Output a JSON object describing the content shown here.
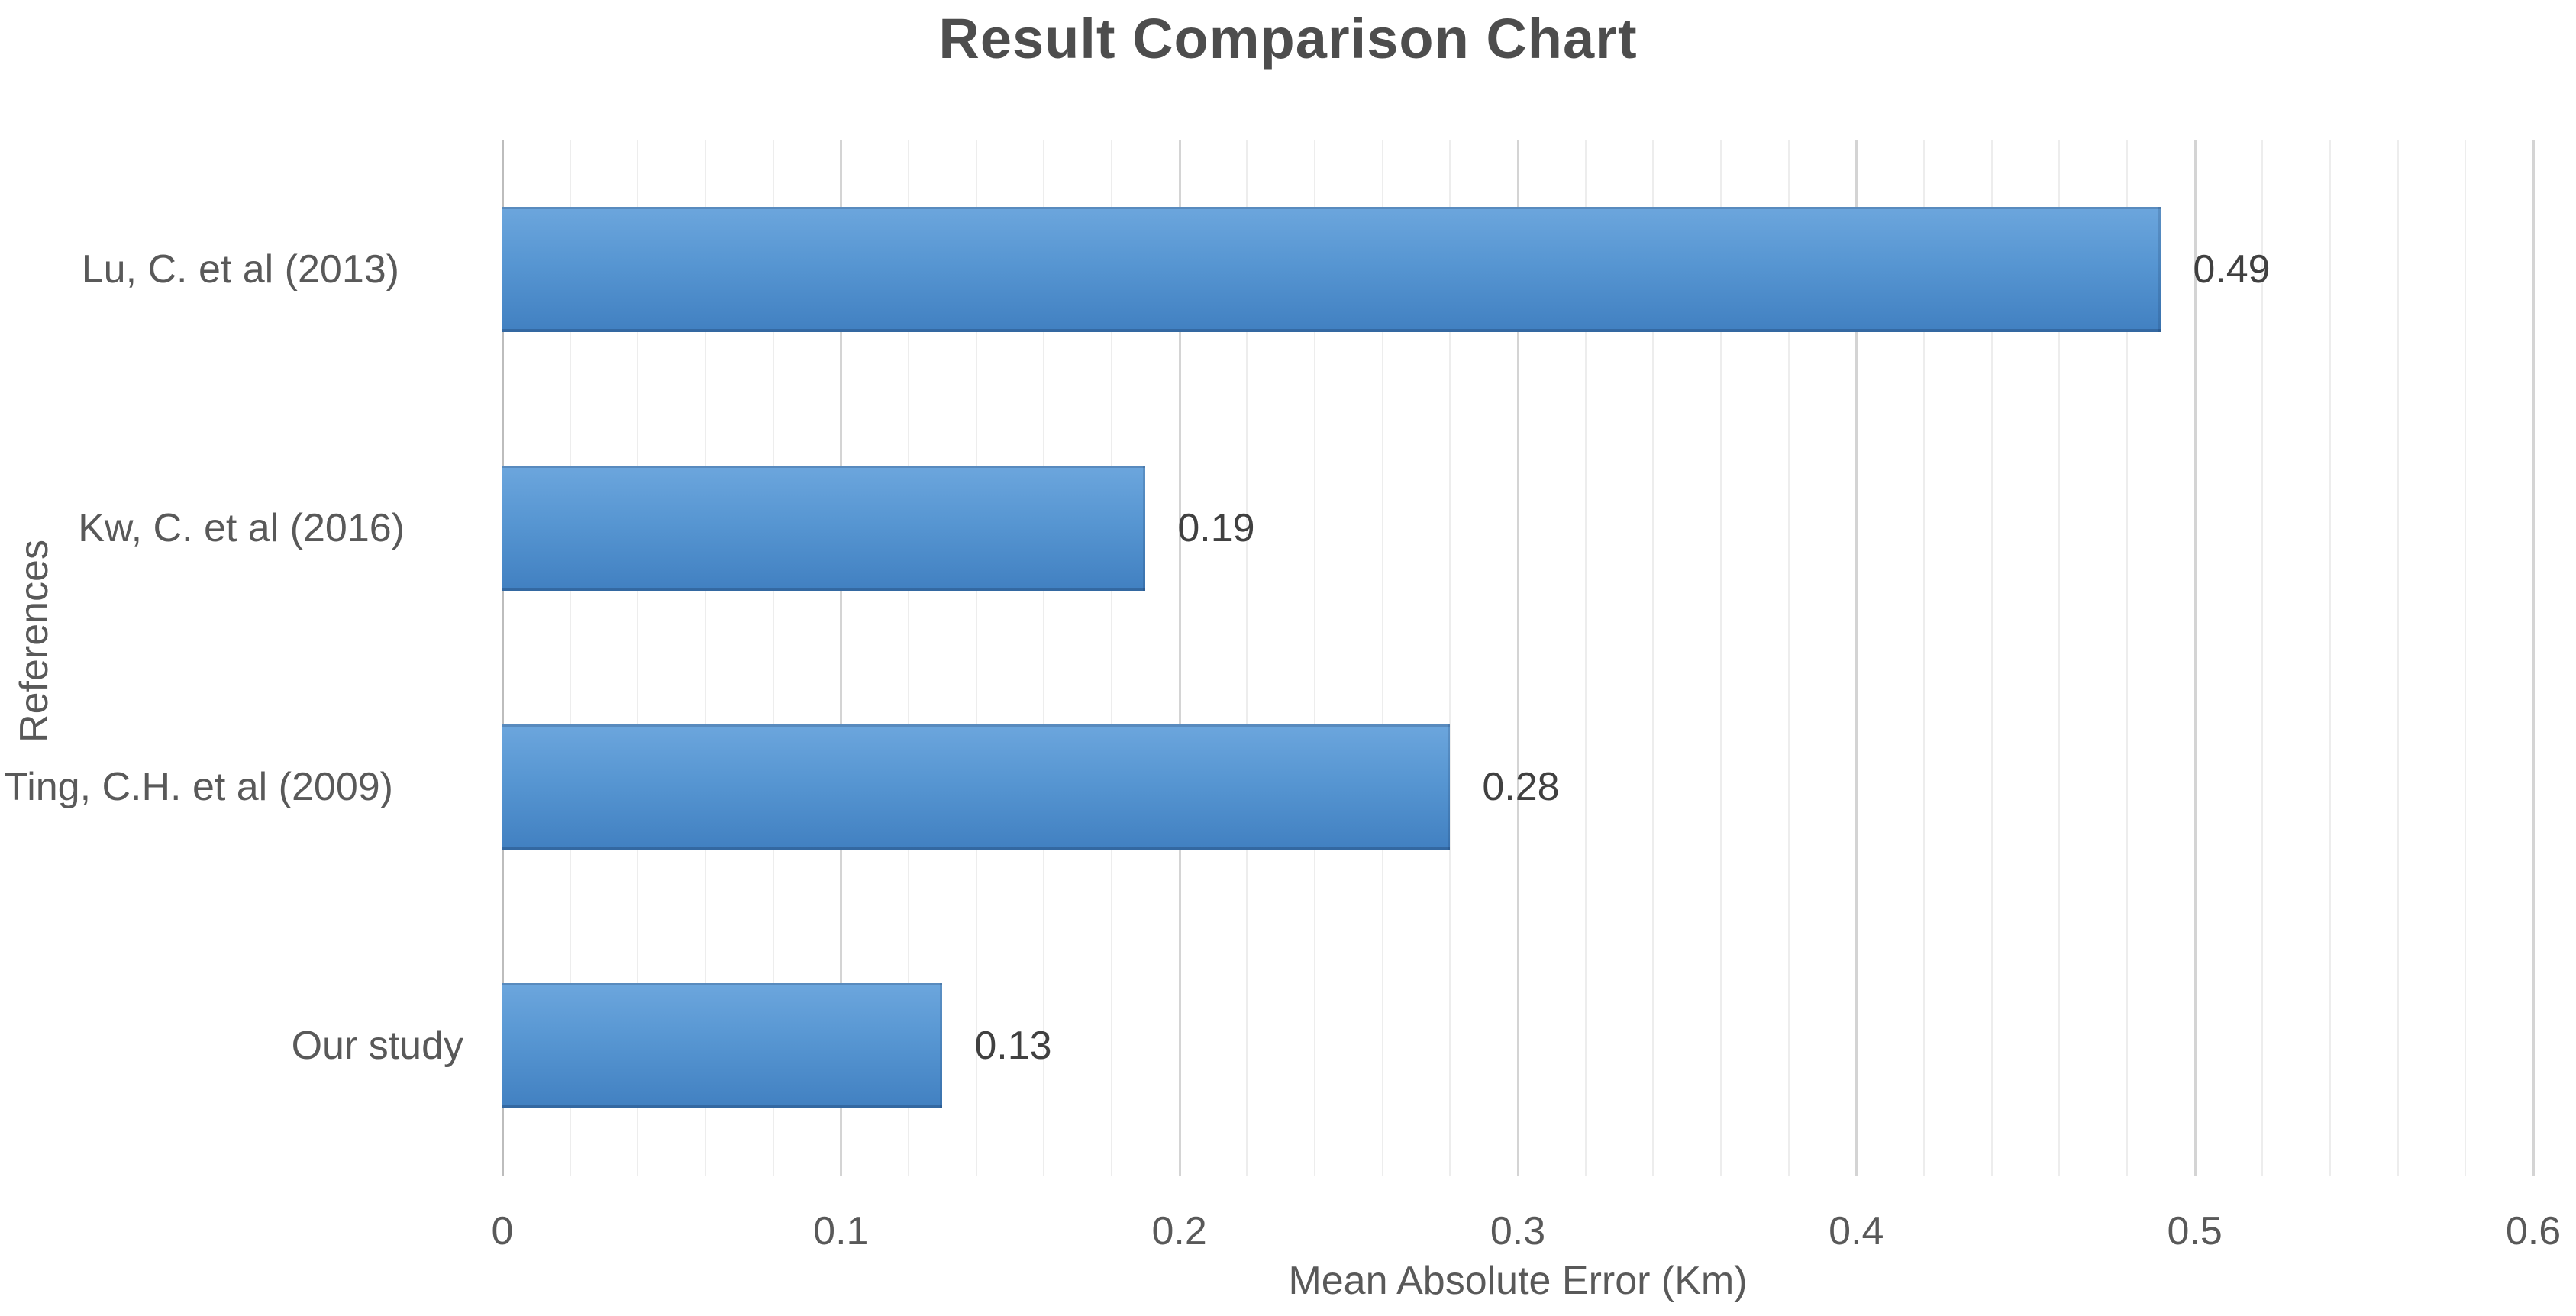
{
  "chart_data": {
    "type": "bar",
    "orientation": "horizontal",
    "title": "Result Comparison Chart",
    "xlabel": "Mean Absolute Error (Km)",
    "ylabel": "References",
    "categories": [
      "Lu, C. et al (2013)",
      "Kw, C. et al (2016)",
      "Ting, C.H. et al (2009)",
      "Our study"
    ],
    "values": [
      0.49,
      0.19,
      0.28,
      0.13
    ],
    "data_labels": [
      "0.49",
      "0.19",
      "0.28",
      "0.13"
    ],
    "xlim": [
      0,
      0.6
    ],
    "x_ticks": [
      0,
      0.1,
      0.2,
      0.3,
      0.4,
      0.5,
      0.6
    ],
    "x_tick_labels": [
      "0",
      "0.1",
      "0.2",
      "0.3",
      "0.4",
      "0.5",
      "0.6"
    ],
    "minor_grid_step": 0.02,
    "grid": "vertical, minor and major gridlines",
    "legend": "none",
    "colors": {
      "bar_top": "#6ca6dd",
      "bar_bottom": "#4180c1",
      "title_text": "#4d4d4d",
      "label_text": "#595959",
      "value_text": "#404040",
      "grid_minor": "#ededed",
      "grid_major": "#d4d4d4",
      "axis_zero_line": "#bdbdbd",
      "background": "#ffffff"
    }
  }
}
